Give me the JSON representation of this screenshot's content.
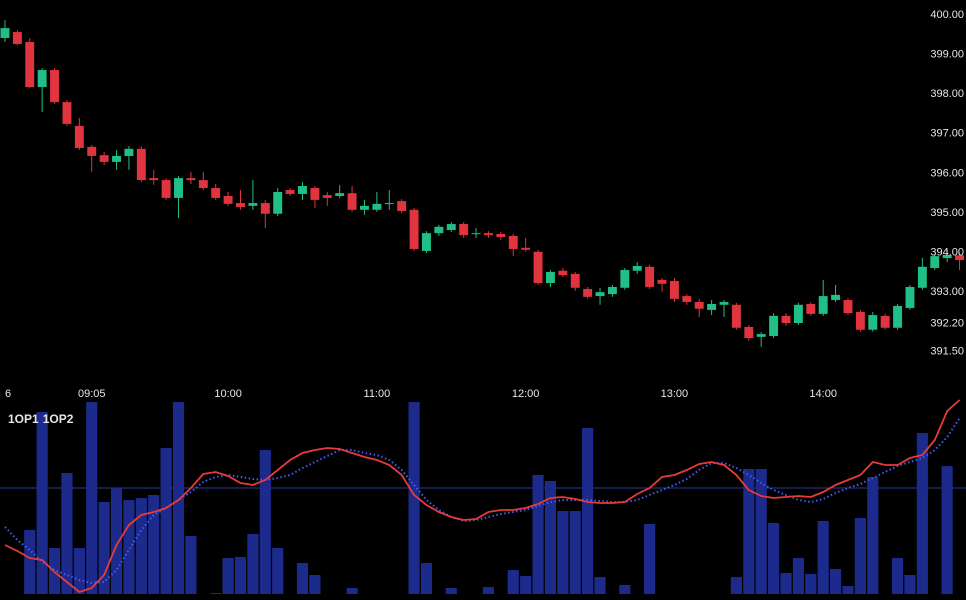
{
  "chart_data": {
    "type": "candlestick",
    "x": [
      510,
      515,
      520,
      525,
      530,
      535,
      540,
      545,
      550,
      555,
      560,
      565,
      570,
      575,
      580,
      585,
      590,
      595,
      600,
      605,
      610,
      615,
      620,
      625,
      630,
      635,
      640,
      645,
      650,
      655,
      660,
      665,
      670,
      675,
      680,
      685,
      690,
      695,
      700,
      705,
      710,
      715,
      720,
      725,
      730,
      735,
      740,
      745,
      750,
      755,
      760,
      765,
      770,
      775,
      780,
      785,
      790,
      795,
      800,
      805,
      810,
      815,
      820,
      825,
      830,
      835,
      840,
      845,
      850,
      855,
      860,
      865,
      870,
      875,
      880,
      885,
      890,
      895
    ],
    "open": [
      399.42,
      399.57,
      399.32,
      398.18,
      398.61,
      397.8,
      397.2,
      396.67,
      396.46,
      396.29,
      396.44,
      396.62,
      395.88,
      395.83,
      395.38,
      395.88,
      395.83,
      395.63,
      395.43,
      395.25,
      395.18,
      395.25,
      394.98,
      395.58,
      395.48,
      395.63,
      395.45,
      395.43,
      395.5,
      395.08,
      395.08,
      395.23,
      395.3,
      395.08,
      394.04,
      394.49,
      394.57,
      394.72,
      394.47,
      394.49,
      394.47,
      394.42,
      394.12,
      394.02,
      393.23,
      393.54,
      393.46,
      393.08,
      392.9,
      392.95,
      393.11,
      393.54,
      393.64,
      393.31,
      393.28,
      392.9,
      392.75,
      392.55,
      392.68,
      392.68,
      392.12,
      391.87,
      391.89,
      392.4,
      392.22,
      392.7,
      392.45,
      392.8,
      392.8,
      392.5,
      392.05,
      392.4,
      392.1,
      392.6,
      393.11,
      393.61,
      393.86,
      393.93
    ],
    "high": [
      399.87,
      399.62,
      399.42,
      398.66,
      398.66,
      397.85,
      397.4,
      396.72,
      396.54,
      396.59,
      396.69,
      396.69,
      396.09,
      395.88,
      395.93,
      396.04,
      396.04,
      395.73,
      395.53,
      395.58,
      395.83,
      395.33,
      395.63,
      395.63,
      395.78,
      395.68,
      395.53,
      395.7,
      395.68,
      395.33,
      395.53,
      395.58,
      395.35,
      395.13,
      394.54,
      394.7,
      394.77,
      394.77,
      394.62,
      394.54,
      394.52,
      394.47,
      394.37,
      394.07,
      393.56,
      393.61,
      393.51,
      393.13,
      393.11,
      393.18,
      393.61,
      393.76,
      393.69,
      393.36,
      393.36,
      392.95,
      392.83,
      392.8,
      392.8,
      392.73,
      392.17,
      391.99,
      392.47,
      392.47,
      392.73,
      392.75,
      393.31,
      393.18,
      392.85,
      392.55,
      392.5,
      392.45,
      392.7,
      393.18,
      393.87,
      393.96,
      394.07,
      394.0
    ],
    "low": [
      399.32,
      399.24,
      398.16,
      397.55,
      397.75,
      397.2,
      396.59,
      396.04,
      396.21,
      396.09,
      396.09,
      395.78,
      395.71,
      395.33,
      394.87,
      395.73,
      395.58,
      395.33,
      395.18,
      395.08,
      395.08,
      394.62,
      394.92,
      395.43,
      395.33,
      395.13,
      395.18,
      395.38,
      395.03,
      394.95,
      395.03,
      395.08,
      395.0,
      394.04,
      393.99,
      394.42,
      394.52,
      394.37,
      394.37,
      394.37,
      394.32,
      393.91,
      394.02,
      393.18,
      393.13,
      393.38,
      393.03,
      392.83,
      392.68,
      392.88,
      393.06,
      393.46,
      393.08,
      393.01,
      392.75,
      392.68,
      392.37,
      392.42,
      392.37,
      392.05,
      391.77,
      391.62,
      391.84,
      392.15,
      392.17,
      392.4,
      392.4,
      392.75,
      392.42,
      392.0,
      392.0,
      392.05,
      392.05,
      392.55,
      393.06,
      393.56,
      393.76,
      393.56
    ],
    "close": [
      399.67,
      399.27,
      398.18,
      398.61,
      397.8,
      397.25,
      396.64,
      396.44,
      396.29,
      396.44,
      396.62,
      395.83,
      395.83,
      395.38,
      395.88,
      395.83,
      395.63,
      395.38,
      395.23,
      395.15,
      395.25,
      394.98,
      395.53,
      395.48,
      395.68,
      395.33,
      395.38,
      395.5,
      395.08,
      395.18,
      395.23,
      395.25,
      395.05,
      394.09,
      394.49,
      394.65,
      394.72,
      394.44,
      394.49,
      394.44,
      394.39,
      394.09,
      394.07,
      393.23,
      393.51,
      393.43,
      393.11,
      392.88,
      393.0,
      393.13,
      393.56,
      393.66,
      393.13,
      393.21,
      392.83,
      392.75,
      392.58,
      392.7,
      392.75,
      392.1,
      391.84,
      391.94,
      392.4,
      392.22,
      392.68,
      392.45,
      392.9,
      392.93,
      392.47,
      392.05,
      392.42,
      392.1,
      392.65,
      393.13,
      393.64,
      393.91,
      393.94,
      393.81
    ],
    "up_color": "#1fbf85",
    "down_color": "#e0343f",
    "xlim": [
      508,
      897.6
    ],
    "xticks": [
      {
        "value": 510,
        "label": "6"
      },
      {
        "value": 545,
        "label": "09:05"
      },
      {
        "value": 600,
        "label": "10:00"
      },
      {
        "value": 660,
        "label": "11:00"
      },
      {
        "value": 720,
        "label": "12:00"
      },
      {
        "value": 780,
        "label": "13:00"
      },
      {
        "value": 840,
        "label": "14:00"
      }
    ],
    "ylim": [
      390.78,
      400.38
    ],
    "yticks": [
      {
        "value": 400,
        "label": "400.00"
      },
      {
        "value": 399,
        "label": "399.00"
      },
      {
        "value": 398,
        "label": "398.00"
      },
      {
        "value": 397,
        "label": "397.00"
      },
      {
        "value": 396,
        "label": "396.00"
      },
      {
        "value": 395,
        "label": "395.00"
      },
      {
        "value": 394,
        "label": "394.00"
      },
      {
        "value": 393,
        "label": "393.00"
      },
      {
        "value": 392.2,
        "label": "392.20"
      },
      {
        "value": 391.5,
        "label": "391.50"
      }
    ],
    "volume": {
      "color": "#1c2a8c",
      "ylim": [
        0,
        192
      ],
      "values": [
        0,
        0,
        64,
        182,
        46,
        121,
        46,
        192,
        92,
        106,
        94,
        96,
        99,
        146,
        192,
        58,
        0,
        1,
        36,
        37,
        60,
        144,
        46,
        0,
        31,
        19,
        0,
        0,
        6,
        0,
        0,
        0,
        0,
        192,
        31,
        0,
        6,
        0,
        0,
        7,
        0,
        24,
        18,
        119,
        113,
        83,
        83,
        166,
        17,
        0,
        9,
        0,
        70,
        0,
        0,
        0,
        0,
        0,
        0,
        17,
        125,
        125,
        71,
        21,
        36,
        20,
        73,
        25,
        8,
        76,
        117,
        0,
        36,
        19,
        161,
        0,
        128,
        0
      ]
    },
    "reference_line": {
      "value": 106,
      "color": "#2a3a9a"
    },
    "series": [
      {
        "name": "1OP1",
        "color": "#3f5ff5",
        "style": "dotted",
        "values": [
          67,
          54,
          44,
          32,
          24,
          19,
          14,
          11,
          12,
          24,
          44,
          64,
          79,
          86,
          94,
          102,
          112,
          117,
          119,
          117,
          115,
          114,
          116,
          119,
          126,
          132,
          138,
          144,
          144,
          141,
          139,
          134,
          124,
          109,
          94,
          84,
          77,
          73,
          74,
          77,
          80,
          82,
          84,
          88,
          92,
          94,
          94,
          94,
          93,
          92,
          92,
          94,
          99,
          104,
          109,
          115,
          124,
          131,
          131,
          126,
          119,
          111,
          104,
          99,
          94,
          92,
          95,
          101,
          106,
          110,
          116,
          122,
          128,
          132,
          136,
          144,
          157,
          176
        ]
      },
      {
        "name": "1OP2",
        "color": "#e83a3a",
        "style": "solid",
        "values": [
          49,
          43,
          36,
          34,
          22,
          12,
          2,
          6,
          19,
          49,
          69,
          79,
          82,
          86,
          94,
          106,
          120,
          122,
          118,
          111,
          109,
          114,
          124,
          134,
          141,
          144,
          146,
          145,
          141,
          137,
          134,
          129,
          119,
          99,
          89,
          82,
          77,
          74,
          75,
          82,
          84,
          84,
          86,
          90,
          96,
          97,
          95,
          92,
          91,
          91,
          92,
          100,
          106,
          117,
          119,
          124,
          130,
          132,
          129,
          119,
          104,
          98,
          96,
          97,
          98,
          97,
          102,
          109,
          114,
          119,
          132,
          129,
          129,
          136,
          139,
          154,
          183,
          194
        ]
      }
    ]
  }
}
